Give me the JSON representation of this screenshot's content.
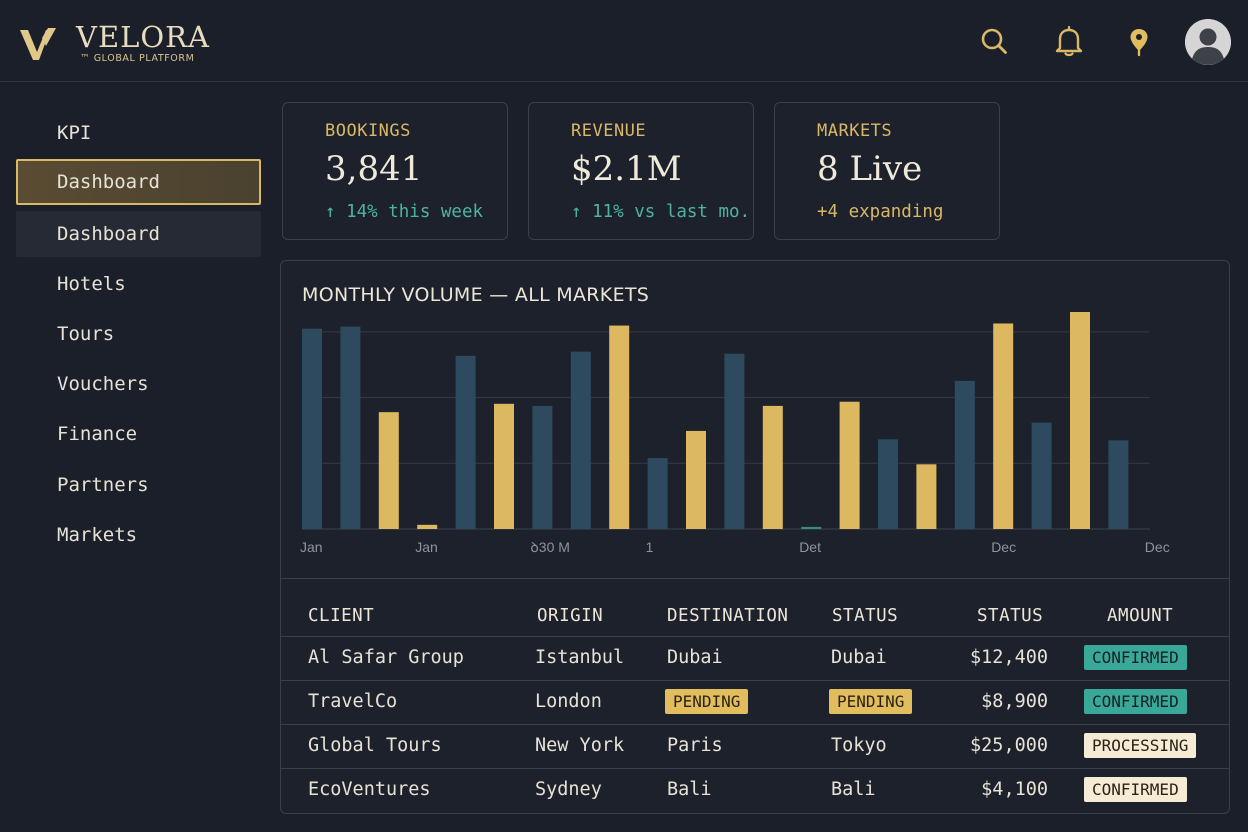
{
  "brand": {
    "name": "VELORA",
    "subtitle": "™ GLOBAL PLATFORM",
    "accent": "#d9b866"
  },
  "header": {
    "icons": [
      "search-icon",
      "bell-icon",
      "location-pin-icon",
      "avatar-icon"
    ]
  },
  "sidebar": {
    "section": "KPI",
    "items": [
      {
        "label": "Dashboard",
        "state": "active"
      },
      {
        "label": "Dashboard",
        "state": "hover"
      },
      {
        "label": "Hotels"
      },
      {
        "label": "Tours"
      },
      {
        "label": "Vouchers"
      },
      {
        "label": "Finance"
      },
      {
        "label": "Partners"
      },
      {
        "label": "Markets"
      }
    ]
  },
  "kpis": [
    {
      "label": "BOOKINGS",
      "value": "3,841",
      "delta": "↑ 14% this week",
      "tone": "green"
    },
    {
      "label": "REVENUE",
      "value": "$2.1M",
      "delta": "↑ 11% vs last mo.",
      "tone": "green"
    },
    {
      "label": "MARKETS",
      "value": "8 Live",
      "delta": "+4 expanding",
      "tone": "gold"
    }
  ],
  "chart": {
    "title": "MONTHLY VOLUME — ALL MARKETS"
  },
  "chart_data": {
    "type": "bar",
    "colors": {
      "navy": "#2d4a5f",
      "gold": "#dcb860",
      "teal": "#2f8f80"
    },
    "bars": [
      {
        "value": 96,
        "color": "navy"
      },
      {
        "value": 97,
        "color": "navy"
      },
      {
        "value": 56,
        "color": "gold"
      },
      {
        "value": 2,
        "color": "gold"
      },
      {
        "value": 83,
        "color": "navy"
      },
      {
        "value": 60,
        "color": "gold"
      },
      {
        "value": 59,
        "color": "navy"
      },
      {
        "value": 85,
        "color": "navy"
      },
      {
        "value": 97.5,
        "color": "gold"
      },
      {
        "value": 34,
        "color": "navy"
      },
      {
        "value": 47,
        "color": "gold"
      },
      {
        "value": 84,
        "color": "navy"
      },
      {
        "value": 59,
        "color": "gold"
      },
      {
        "value": 1,
        "color": "teal"
      },
      {
        "value": 61,
        "color": "gold"
      },
      {
        "value": 43,
        "color": "navy"
      },
      {
        "value": 31,
        "color": "gold"
      },
      {
        "value": 71,
        "color": "navy"
      },
      {
        "value": 98.5,
        "color": "gold"
      },
      {
        "value": 51,
        "color": "navy"
      },
      {
        "value": 104,
        "color": "gold"
      },
      {
        "value": 42.5,
        "color": "navy"
      }
    ],
    "ylim": [
      0,
      104
    ],
    "gridlines": [
      31.5,
      63,
      94.5
    ],
    "grid": true,
    "x_tick_labels": [
      {
        "label": "Jan",
        "at_bar": 0
      },
      {
        "label": "Jan",
        "at_bar": 3
      },
      {
        "label": "ꝺ30 M",
        "at_bar": 6
      },
      {
        "label": "1",
        "at_bar": 9
      },
      {
        "label": "Det",
        "at_bar": 13
      },
      {
        "label": "Dec",
        "at_bar": 18
      },
      {
        "label": "Dec",
        "at_bar": 22
      }
    ]
  },
  "table": {
    "headers": [
      "CLIENT",
      "ORIGIN",
      "DESTINATION",
      "STATUS",
      "STATUS",
      "AMOUNT"
    ],
    "rows": [
      {
        "client": "Al Safar Group",
        "origin": "Istanbul",
        "destination": "Dubai",
        "status": "Dubai",
        "amount": "$12,400",
        "badge": "CONFIRMED",
        "dest_pill": "",
        "status_pill": "",
        "badge_tone": "teal"
      },
      {
        "client": "TravelCo",
        "origin": "London",
        "destination": "PENDING",
        "status": "PENDING",
        "amount": "$8,900",
        "badge": "CONFIRMED",
        "dest_pill": "gold",
        "status_pill": "gold",
        "badge_tone": "teal"
      },
      {
        "client": "Global Tours",
        "origin": "New York",
        "destination": "Paris",
        "status": "Tokyo",
        "amount": "$25,000",
        "badge": "PROCESSING",
        "dest_pill": "",
        "status_pill": "",
        "badge_tone": "cream"
      },
      {
        "client": "EcoVentures",
        "origin": "Sydney",
        "destination": "Bali",
        "status": "Bali",
        "amount": "$4,100",
        "badge": "CONFIRMED",
        "dest_pill": "",
        "status_pill": "",
        "badge_tone": "cream"
      }
    ]
  }
}
